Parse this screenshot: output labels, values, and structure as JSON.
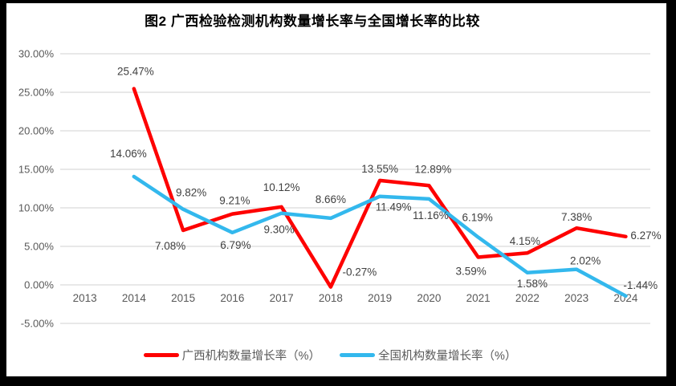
{
  "chart_data": {
    "type": "line",
    "title": "图2 广西检验检测机构数量增长率与全国增长率的比较",
    "categories": [
      "2013",
      "2014",
      "2015",
      "2016",
      "2017",
      "2018",
      "2019",
      "2020",
      "2021",
      "2022",
      "2023",
      "2024"
    ],
    "series": [
      {
        "name": "广西机构数量增长率（%）",
        "color": "#FE0000",
        "values": [
          null,
          25.47,
          7.08,
          9.21,
          10.12,
          -0.27,
          13.55,
          12.89,
          3.59,
          4.15,
          7.38,
          6.27
        ],
        "labels": [
          "",
          "25.47%",
          "7.08%",
          "9.21%",
          "10.12%",
          "-0.27%",
          "13.55%",
          "12.89%",
          "3.59%",
          "4.15%",
          "7.38%",
          "6.27%"
        ]
      },
      {
        "name": "全国机构数量增长率（%）",
        "color": "#33B8ED",
        "values": [
          null,
          14.06,
          9.82,
          6.79,
          9.3,
          8.66,
          11.49,
          11.16,
          6.19,
          1.58,
          2.02,
          -1.44
        ],
        "labels": [
          "",
          "14.06%",
          "9.82%",
          "6.79%",
          "9.30%",
          "8.66%",
          "11.49%",
          "11.16%",
          "6.19%",
          "1.58%",
          "2.02%",
          "-1.44%"
        ]
      }
    ],
    "y_axis": {
      "tick_labels": [
        "30.00%",
        "25.00%",
        "20.00%",
        "15.00%",
        "10.00%",
        "5.00%",
        "0.00%",
        "-5.00%"
      ],
      "tick_values": [
        30,
        25,
        20,
        15,
        10,
        5,
        0,
        -5
      ],
      "min": -5,
      "max": 30,
      "grid": true
    },
    "legend_position": "bottom",
    "colors": {
      "grid": "#D9D9D9",
      "axis_text": "#595959",
      "data_label": "#404040",
      "title": "#000000",
      "frame": "#000000",
      "background": "#FFFFFF"
    }
  }
}
